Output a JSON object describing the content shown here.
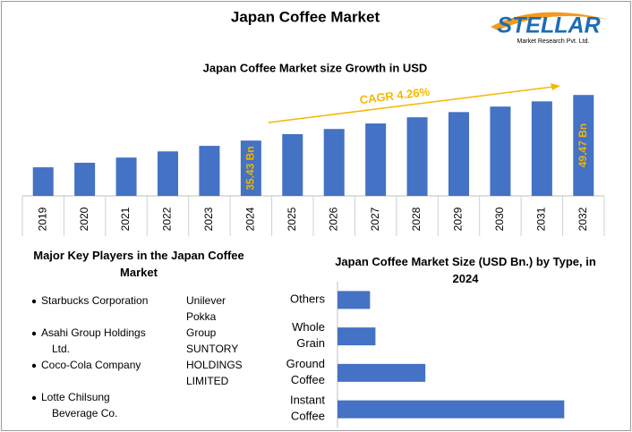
{
  "header": {
    "title": "Japan Coffee Market",
    "logo_name": "STELLAR",
    "logo_tagline": "Market Research Pvt. Ltd."
  },
  "chart_data": [
    {
      "type": "bar",
      "title": "Japan Coffee Market size Growth in USD",
      "categories": [
        "2019",
        "2020",
        "2021",
        "2022",
        "2023",
        "2024",
        "2025",
        "2026",
        "2027",
        "2028",
        "2029",
        "2030",
        "2031",
        "2032"
      ],
      "values": [
        27.2,
        28.6,
        30.2,
        32.1,
        33.8,
        35.43,
        37.4,
        39.0,
        40.7,
        42.6,
        44.2,
        45.9,
        47.5,
        49.47
      ],
      "value_labels": [
        null,
        null,
        null,
        null,
        null,
        "35.43 Bn",
        null,
        null,
        null,
        null,
        null,
        null,
        null,
        "49.47 Bn"
      ],
      "color": "#4472c4",
      "label_color": "#f0b400",
      "ylim": [
        18.4,
        52
      ],
      "annotation": "CAGR 4.26%",
      "annotation_color": "#f5b800"
    },
    {
      "type": "hbar",
      "title": "Japan Coffee Market Size (USD Bn.) by Type, in 2024",
      "categories": [
        "Others",
        "Whole Grain",
        "Ground Coffee",
        "Instant Coffee"
      ],
      "values": [
        3.0,
        3.5,
        8.1,
        20.9
      ],
      "color": "#4472c4",
      "xlim": [
        0,
        25
      ]
    }
  ],
  "key_players": {
    "title": "Major Key Players in the Japan Coffee Market",
    "left": [
      [
        "Starbucks Corporation"
      ],
      [
        "Asahi Group Holdings",
        "Ltd."
      ],
      [
        "Coco-Cola Company"
      ],
      [
        "Lotte Chilsung",
        "Beverage Co."
      ]
    ],
    "right": [
      [
        "Unilever"
      ],
      [
        "Pokka",
        "Group"
      ],
      [
        "SUNTORY",
        "HOLDINGS",
        "LIMITED"
      ]
    ]
  }
}
